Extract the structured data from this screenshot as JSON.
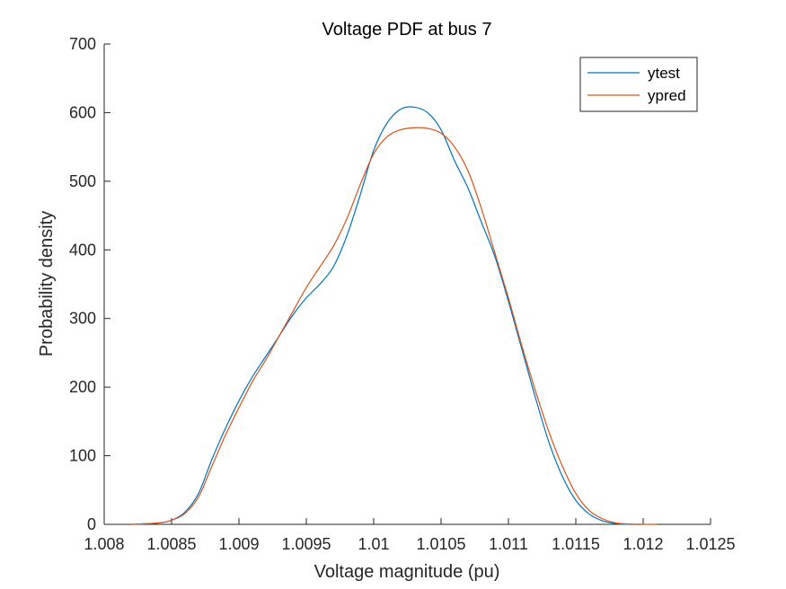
{
  "chart_data": {
    "type": "line",
    "title": "Voltage PDF at bus 7",
    "xlabel": "Voltage magnitude (pu)",
    "ylabel": "Probability density",
    "xlim": [
      1.008,
      1.0125
    ],
    "ylim": [
      0,
      700
    ],
    "xticks": [
      1.008,
      1.0085,
      1.009,
      1.0095,
      1.01,
      1.0105,
      1.011,
      1.0115,
      1.012,
      1.0125
    ],
    "xtick_labels": [
      "1.008",
      "1.0085",
      "1.009",
      "1.0095",
      "1.01",
      "1.0105",
      "1.011",
      "1.0115",
      "1.012",
      "1.0125"
    ],
    "yticks": [
      0,
      100,
      200,
      300,
      400,
      500,
      600,
      700
    ],
    "ytick_labels": [
      "0",
      "100",
      "200",
      "300",
      "400",
      "500",
      "600",
      "700"
    ],
    "grid": false,
    "legend_position": "top-right",
    "series": [
      {
        "name": "ytest",
        "color": "#0072BD",
        "x": [
          1.0082,
          1.0084,
          1.0085,
          1.0086,
          1.0087,
          1.0088,
          1.0089,
          1.009,
          1.0091,
          1.0092,
          1.0093,
          1.0094,
          1.0095,
          1.0096,
          1.0097,
          1.0098,
          1.0099,
          1.01,
          1.0101,
          1.0102,
          1.0103,
          1.0104,
          1.0105,
          1.0106,
          1.0107,
          1.0108,
          1.0109,
          1.011,
          1.0111,
          1.0112,
          1.0113,
          1.0114,
          1.0115,
          1.0116,
          1.0117,
          1.0118,
          1.0119,
          1.012
        ],
        "y": [
          0,
          2,
          6,
          18,
          45,
          95,
          140,
          180,
          215,
          245,
          275,
          305,
          330,
          350,
          375,
          420,
          480,
          545,
          585,
          605,
          608,
          600,
          575,
          530,
          490,
          440,
          390,
          325,
          255,
          185,
          120,
          70,
          35,
          15,
          5,
          1,
          0,
          0
        ]
      },
      {
        "name": "ypred",
        "color": "#D95319",
        "x": [
          1.0082,
          1.0084,
          1.0085,
          1.0086,
          1.0087,
          1.0088,
          1.0089,
          1.009,
          1.0091,
          1.0092,
          1.0093,
          1.0094,
          1.0095,
          1.0096,
          1.0097,
          1.0098,
          1.0099,
          1.01,
          1.0101,
          1.0102,
          1.0103,
          1.0104,
          1.0105,
          1.0106,
          1.0107,
          1.0108,
          1.0109,
          1.011,
          1.0111,
          1.0112,
          1.0113,
          1.0114,
          1.0115,
          1.0116,
          1.0117,
          1.0118,
          1.0119,
          1.012,
          1.0121
        ],
        "y": [
          0,
          2,
          6,
          16,
          40,
          85,
          130,
          170,
          208,
          240,
          275,
          310,
          345,
          375,
          405,
          445,
          495,
          540,
          565,
          575,
          578,
          577,
          570,
          550,
          515,
          460,
          395,
          330,
          260,
          195,
          135,
          85,
          45,
          20,
          8,
          2,
          0.5,
          0,
          0
        ]
      }
    ]
  }
}
